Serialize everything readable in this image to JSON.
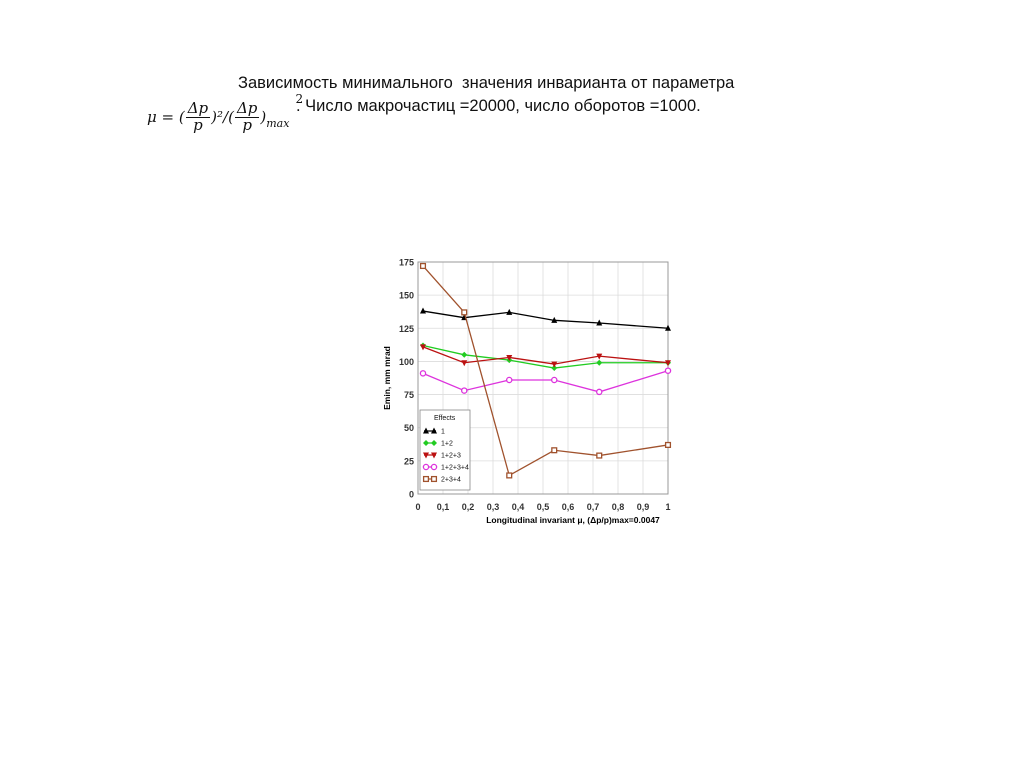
{
  "slide": {
    "title_line1": "Зависимость минимального  значения инварианта от параметра",
    "formula": {
      "lhs": "μ = (",
      "delta_p": "Δp",
      "p": "p",
      "mid": ")²/(",
      "close": ")",
      "max_sub": "max",
      "sup": "2"
    },
    "title_line2": ". Число макрочастиц =20000, число оборотов =1000."
  },
  "chart_data": {
    "type": "line",
    "xlabel": "Longitudinal invariant μ, (Δp/p)max=0.0047",
    "ylabel": "Emin, mm mrad",
    "xlim": [
      0,
      1
    ],
    "ylim": [
      0,
      175
    ],
    "x_ticks": [
      "0",
      "0,1",
      "0,2",
      "0,3",
      "0,4",
      "0,5",
      "0,6",
      "0,7",
      "0,8",
      "0,9",
      "1"
    ],
    "y_ticks": [
      "0",
      "25",
      "50",
      "75",
      "100",
      "125",
      "150",
      "175"
    ],
    "grid": true,
    "legend": {
      "title": "Effects",
      "position": "bottom-left"
    },
    "series": [
      {
        "name": "1",
        "color": "#000000",
        "marker": "triangle-up",
        "x": [
          0.02,
          0.185,
          0.365,
          0.545,
          0.725,
          1.0
        ],
        "y": [
          138,
          133,
          137,
          131,
          129,
          125
        ]
      },
      {
        "name": "1+2",
        "color": "#22cc22",
        "marker": "diamond",
        "x": [
          0.02,
          0.185,
          0.365,
          0.545,
          0.725,
          1.0
        ],
        "y": [
          112,
          105,
          101,
          95,
          99,
          99
        ]
      },
      {
        "name": "1+2+3",
        "color": "#bb1111",
        "marker": "triangle-down",
        "x": [
          0.02,
          0.185,
          0.365,
          0.545,
          0.725,
          1.0
        ],
        "y": [
          111,
          99,
          103,
          98,
          104,
          99
        ]
      },
      {
        "name": "1+2+3+4",
        "color": "#dd33dd",
        "marker": "circle",
        "x": [
          0.02,
          0.185,
          0.365,
          0.545,
          0.725,
          1.0
        ],
        "y": [
          91,
          78,
          86,
          86,
          77,
          93
        ]
      },
      {
        "name": "2+3+4",
        "color": "#a0522d",
        "marker": "square",
        "x": [
          0.02,
          0.185,
          0.365,
          0.545,
          0.725,
          1.0
        ],
        "y": [
          172,
          137,
          14,
          33,
          29,
          37
        ]
      }
    ]
  }
}
